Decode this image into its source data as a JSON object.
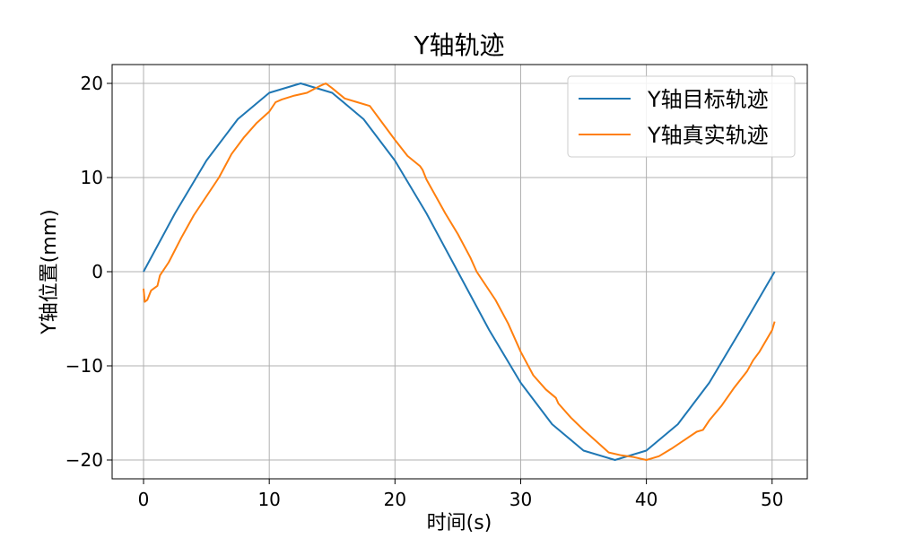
{
  "chart_data": {
    "type": "line",
    "title": "Y轴轨迹",
    "xlabel": "时间(s)",
    "ylabel": "Y轴位置(mm)",
    "xlim": [
      -2.5,
      52.8
    ],
    "ylim": [
      -22,
      22
    ],
    "xticks": [
      0,
      10,
      20,
      30,
      40,
      50
    ],
    "yticks": [
      -20,
      -10,
      0,
      10,
      20
    ],
    "grid": true,
    "legend_position": "upper-right",
    "series": [
      {
        "name": "Y轴目标轨迹",
        "color": "#1f77b4",
        "x": [
          0,
          2.5,
          5,
          7.5,
          10,
          12.5,
          15,
          17.5,
          20,
          22.5,
          25,
          27.5,
          30,
          32.5,
          35,
          37.5,
          40,
          42.5,
          45,
          47.5,
          50.2
        ],
        "y": [
          0,
          6.2,
          11.8,
          16.2,
          19.0,
          20.0,
          19.0,
          16.2,
          11.8,
          6.2,
          0,
          -6.2,
          -11.8,
          -16.2,
          -19.0,
          -20.0,
          -19.0,
          -16.2,
          -11.8,
          -6.2,
          0
        ]
      },
      {
        "name": "Y轴真实轨迹",
        "color": "#ff7f0e",
        "x": [
          0,
          0.1,
          0.3,
          0.6,
          0.8,
          1.1,
          1.3,
          2,
          3,
          4,
          5,
          6,
          7,
          8,
          9,
          10,
          10.5,
          11,
          12,
          13,
          14,
          14.5,
          15,
          16,
          17,
          18,
          19,
          20,
          21,
          22,
          22.2,
          22.5,
          24,
          25,
          26,
          26.5,
          27,
          28,
          29,
          30,
          31,
          32,
          32.8,
          33,
          34,
          35,
          36,
          37,
          38,
          39,
          40,
          40.5,
          41,
          42,
          43,
          44,
          44.5,
          45,
          46,
          47,
          48,
          48.5,
          49,
          50,
          50.2
        ],
        "y": [
          -1.8,
          -3.2,
          -3.0,
          -2.0,
          -1.8,
          -1.5,
          -0.4,
          1.0,
          3.6,
          6.0,
          8.0,
          10.0,
          12.5,
          14.3,
          15.8,
          17.0,
          18.0,
          18.3,
          18.7,
          19.0,
          19.7,
          20.0,
          19.5,
          18.4,
          18.0,
          17.6,
          15.8,
          14.0,
          12.3,
          11.2,
          10.8,
          9.8,
          6.2,
          4.0,
          1.5,
          0,
          -1.0,
          -3.0,
          -5.5,
          -8.5,
          -11.0,
          -12.5,
          -13.4,
          -14.0,
          -15.5,
          -16.8,
          -18.0,
          -19.2,
          -19.5,
          -19.7,
          -20.0,
          -19.8,
          -19.6,
          -18.8,
          -17.9,
          -17.0,
          -16.8,
          -15.8,
          -14.2,
          -12.3,
          -10.6,
          -9.4,
          -8.5,
          -6.2,
          -5.3
        ]
      }
    ]
  }
}
